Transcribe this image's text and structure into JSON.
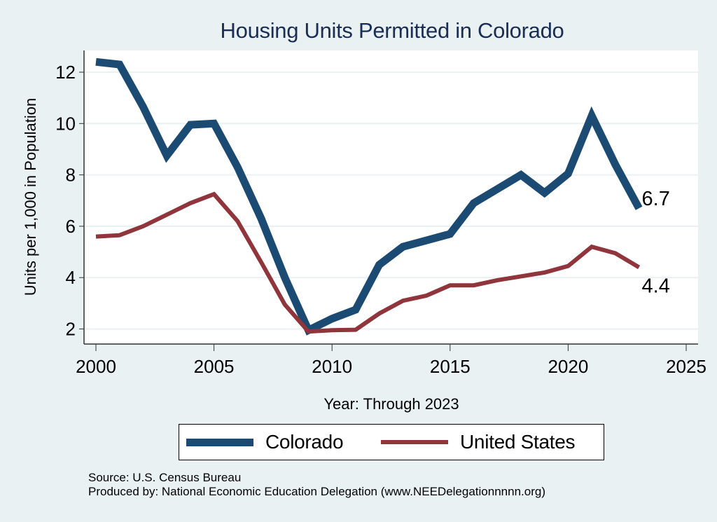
{
  "chart_data": {
    "type": "line",
    "title": "Housing Units Permitted in Colorado",
    "xlabel": "Year: Through 2023",
    "ylabel": "Units per 1,000 in Population",
    "xlim": [
      2000,
      2025
    ],
    "ylim": [
      2,
      12
    ],
    "x_ticks": [
      2000,
      2005,
      2010,
      2015,
      2020,
      2025
    ],
    "y_ticks": [
      2,
      4,
      6,
      8,
      10,
      12
    ],
    "grid": true,
    "legend_position": "bottom",
    "x": [
      2000,
      2001,
      2002,
      2003,
      2004,
      2005,
      2006,
      2007,
      2008,
      2009,
      2010,
      2011,
      2012,
      2013,
      2014,
      2015,
      2016,
      2017,
      2018,
      2019,
      2020,
      2021,
      2022,
      2023
    ],
    "series": [
      {
        "name": "Colorado",
        "color": "#1b4a73",
        "values": [
          12.4,
          12.3,
          10.65,
          8.75,
          9.95,
          10.0,
          8.3,
          6.3,
          4.0,
          1.95,
          2.4,
          2.75,
          4.5,
          5.2,
          5.45,
          5.7,
          6.9,
          7.45,
          8.0,
          7.3,
          8.05,
          10.3,
          8.4,
          6.7
        ],
        "end_label": "6.7"
      },
      {
        "name": "United States",
        "color": "#90353b",
        "values": [
          5.6,
          5.65,
          6.0,
          6.45,
          6.9,
          7.25,
          6.2,
          4.6,
          2.95,
          1.9,
          1.95,
          1.97,
          2.6,
          3.1,
          3.3,
          3.7,
          3.7,
          3.9,
          4.05,
          4.2,
          4.45,
          5.2,
          4.95,
          4.4
        ],
        "end_label": "4.4"
      }
    ],
    "notes": [
      "Source: U.S. Census Bureau",
      "Produced by: National Economic Education Delegation (www.NEEDelegationnnnn.org)"
    ]
  }
}
